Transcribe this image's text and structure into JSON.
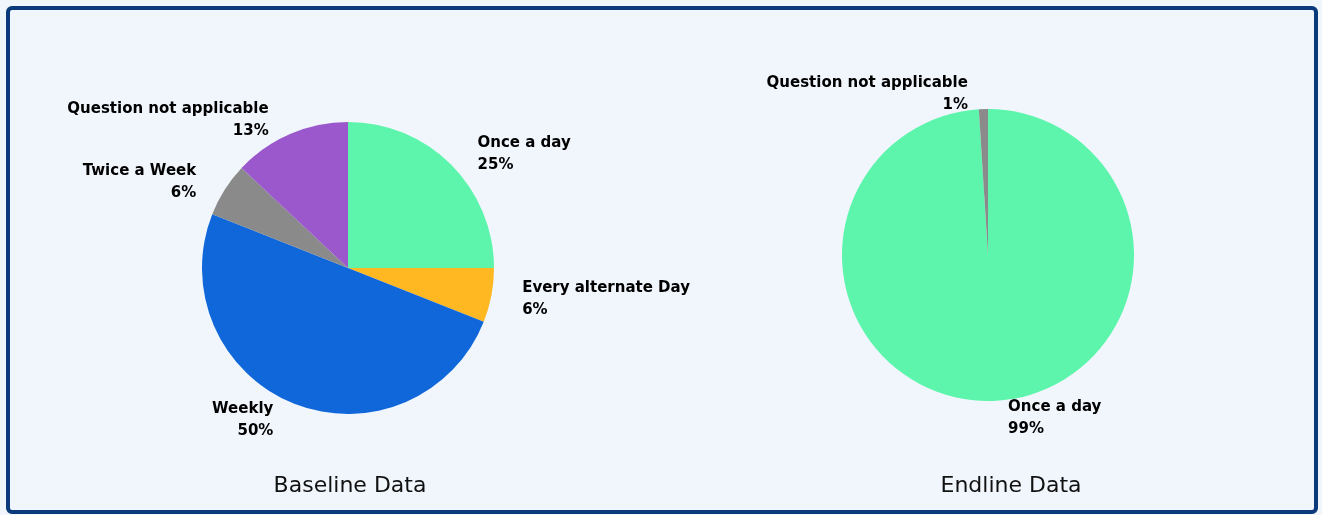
{
  "chart_data": [
    {
      "type": "pie",
      "title": "Baseline Data",
      "categories": [
        "Once a day",
        "Every alternate Day",
        "Weekly",
        "Twice a Week",
        "Question not applicable"
      ],
      "values": [
        25,
        6,
        50,
        6,
        13
      ],
      "value_labels": [
        "25%",
        "6%",
        "50%",
        "6%",
        "13%"
      ],
      "colors": [
        "#5cf5ab",
        "#ffb822",
        "#0f67d9",
        "#8a8a8a",
        "#9a58cc"
      ],
      "legend": false
    },
    {
      "type": "pie",
      "title": "Endline Data",
      "categories": [
        "Once a day",
        "Question not applicable"
      ],
      "values": [
        99,
        1
      ],
      "value_labels": [
        "99%",
        "1%"
      ],
      "colors": [
        "#5cf5ab",
        "#8a8a8a"
      ],
      "legend": false
    }
  ]
}
